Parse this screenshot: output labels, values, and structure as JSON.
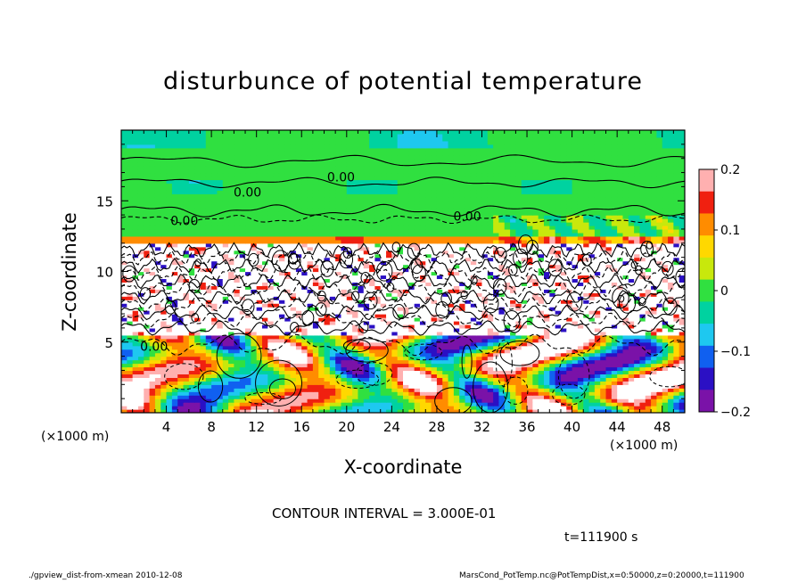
{
  "chart_data": {
    "type": "heatmap",
    "title": "disturbunce of potential temperature",
    "xlabel": "X-coordinate",
    "ylabel": "Z-coordinate",
    "x_unit": "(×1000 m)",
    "x_ticks": [
      4,
      8,
      12,
      16,
      20,
      24,
      28,
      32,
      36,
      40,
      44,
      48
    ],
    "y_ticks": [
      5,
      10,
      15
    ],
    "xlim": [
      0,
      50
    ],
    "ylim": [
      0,
      20
    ],
    "colorbar": {
      "range": [
        -0.2,
        0.2
      ],
      "tick_labels": [
        "0.2",
        "0.1",
        "0",
        "−0.1",
        "−0.2"
      ],
      "tick_values": [
        0.2,
        0.1,
        0,
        -0.1,
        -0.2
      ],
      "colors": [
        "#7a12a8",
        "#2b10c4",
        "#1060f0",
        "#1ec8f0",
        "#00d2a0",
        "#30e040",
        "#c8e80c",
        "#ffd800",
        "#ff8c00",
        "#f02010",
        "#ffb0b0"
      ]
    },
    "contour_labels": [
      {
        "text": "0.00",
        "x": 19.5,
        "z": 16.7
      },
      {
        "text": "0.00",
        "x": 11.2,
        "z": 15.6
      },
      {
        "text": "0.00",
        "x": 5.6,
        "z": 13.6
      },
      {
        "text": "0.00",
        "x": 30.7,
        "z": 13.9
      },
      {
        "text": "0.00",
        "x": 2.9,
        "z": 4.7
      }
    ],
    "contour_interval": "CONTOUR INTERVAL = 3.000E-01",
    "time_label": "t=111900 s",
    "footer_left": "./gpview_dist-from-xmean  2010-12-08",
    "footer_right": "MarsCond_PotTemp.nc@PotTempDist,x=0:50000,z=0:20000,t=111900"
  }
}
